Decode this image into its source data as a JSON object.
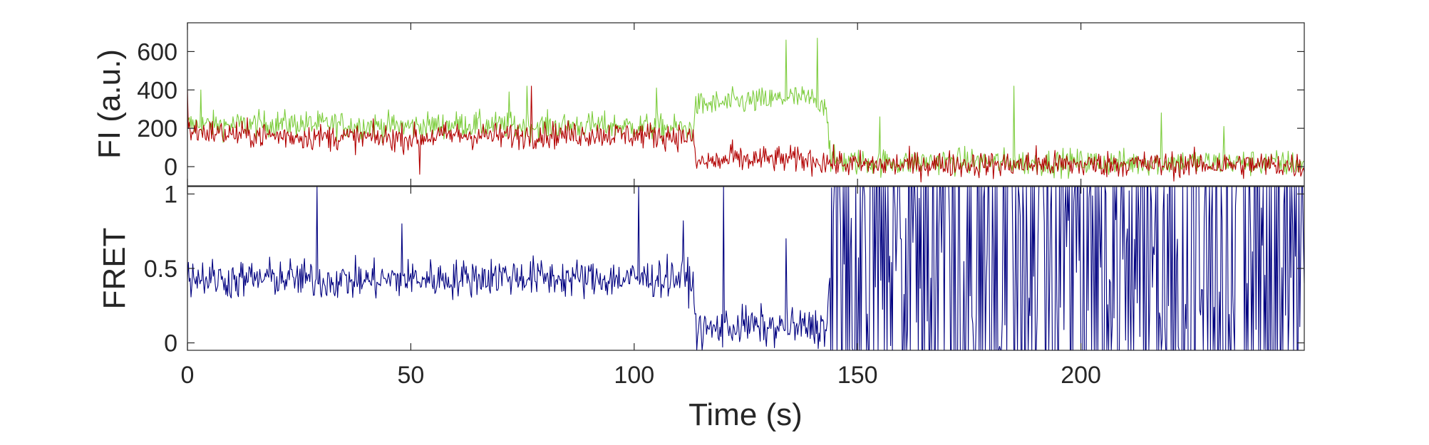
{
  "chart_data": [
    {
      "type": "line",
      "panel": "fluorescence",
      "title": "",
      "xlabel": "",
      "ylabel": "FI (a.u.)",
      "xlim": [
        0,
        250
      ],
      "ylim": [
        -100,
        750
      ],
      "yticks": [
        0,
        200,
        400,
        600
      ],
      "grid": false,
      "legend": "none",
      "series": [
        {
          "color": "#7ccc3c",
          "x": [
            0,
            10,
            20,
            30,
            40,
            50,
            60,
            70,
            80,
            90,
            100,
            110,
            113,
            114,
            120,
            125,
            130,
            135,
            140,
            143,
            144,
            150,
            160,
            170,
            180,
            190,
            200,
            210,
            220,
            230,
            240,
            250
          ],
          "y": [
            220,
            215,
            225,
            220,
            215,
            210,
            220,
            215,
            210,
            215,
            210,
            200,
            195,
            320,
            330,
            340,
            345,
            360,
            350,
            330,
            30,
            25,
            20,
            30,
            25,
            20,
            25,
            20,
            25,
            20,
            20,
            15
          ],
          "spikes": [
            [
              3,
              400
            ],
            [
              72,
              390
            ],
            [
              76,
              420
            ],
            [
              105,
              410
            ],
            [
              134,
              660
            ],
            [
              141,
              670
            ],
            [
              155,
              260
            ],
            [
              185,
              420
            ],
            [
              218,
              280
            ],
            [
              232,
              210
            ]
          ]
        },
        {
          "color": "#b20000",
          "x": [
            0,
            10,
            20,
            30,
            40,
            50,
            60,
            70,
            80,
            90,
            100,
            110,
            113,
            114,
            120,
            130,
            140,
            143,
            144,
            150,
            160,
            170,
            180,
            190,
            200,
            210,
            220,
            230,
            240,
            250
          ],
          "y": [
            190,
            170,
            160,
            155,
            150,
            150,
            165,
            160,
            165,
            170,
            165,
            160,
            150,
            20,
            30,
            40,
            35,
            25,
            20,
            10,
            10,
            15,
            10,
            10,
            10,
            15,
            10,
            10,
            10,
            5
          ],
          "spikes": [
            [
              0,
              400
            ],
            [
              52,
              -40
            ],
            [
              77,
              420
            ],
            [
              122,
              140
            ],
            [
              190,
              110
            ]
          ]
        }
      ]
    },
    {
      "type": "line",
      "panel": "fret",
      "title": "",
      "xlabel": "Time (s)",
      "ylabel": "FRET",
      "xlim": [
        0,
        250
      ],
      "ylim": [
        -0.05,
        1.05
      ],
      "xticks": [
        0,
        50,
        100,
        150,
        200
      ],
      "yticks": [
        0,
        0.5,
        1
      ],
      "ytick_labels": [
        "0",
        "0.5",
        "1"
      ],
      "grid": false,
      "legend": "none",
      "series": [
        {
          "color": "#000080",
          "x": [
            0,
            10,
            20,
            30,
            40,
            50,
            60,
            70,
            80,
            90,
            100,
            110,
            113,
            114,
            120,
            125,
            130,
            135,
            140,
            143,
            144,
            150,
            175,
            200,
            225,
            250
          ],
          "y": [
            0.45,
            0.42,
            0.44,
            0.42,
            0.42,
            0.43,
            0.43,
            0.45,
            0.44,
            0.43,
            0.43,
            0.44,
            0.42,
            0.08,
            0.1,
            0.12,
            0.1,
            0.1,
            0.11,
            0.1,
            0.5,
            0.5,
            0.5,
            0.5,
            0.5,
            0.5
          ],
          "spikes": [
            [
              29,
              1.05
            ],
            [
              48,
              0.8
            ],
            [
              101,
              1.05
            ],
            [
              111,
              0.82
            ],
            [
              120,
              1.05
            ],
            [
              134,
              0.7
            ]
          ],
          "saturated_from": 144
        }
      ]
    }
  ]
}
